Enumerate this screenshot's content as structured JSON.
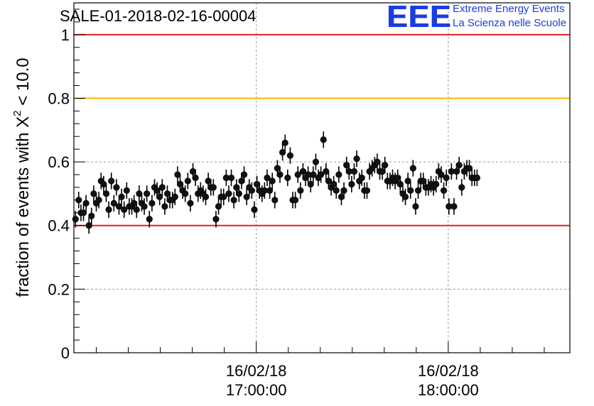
{
  "title": "SALE-01-2018-02-16-00004",
  "logo": {
    "mark": "EEE",
    "line1": "Extreme Energy Events",
    "line2": "La Scienza nelle Scuole",
    "color": "#1a3de0"
  },
  "chart_data": {
    "type": "scatter",
    "title": "SALE-01-2018-02-16-00004",
    "ylabel_prefix": "fraction of events with ",
    "ylabel_symbol": "Χ",
    "ylabel_sup": "2",
    "ylabel_suffix": " < 10.0",
    "xlabel": "",
    "ylim": [
      0,
      1.1
    ],
    "xlim_minutes": [
      -57,
      98
    ],
    "x_ticks": [
      {
        "minute": 0,
        "date": "16/02/18",
        "time": "17:00:00"
      },
      {
        "minute": 60,
        "date": "16/02/18",
        "time": "18:00:00"
      }
    ],
    "y_ticks": [
      {
        "value": 0,
        "label": "0"
      },
      {
        "value": 0.2,
        "label": "0.2"
      },
      {
        "value": 0.4,
        "label": "0.4"
      },
      {
        "value": 0.6,
        "label": "0.6"
      },
      {
        "value": 0.8,
        "label": "0.8"
      },
      {
        "value": 1,
        "label": "1"
      }
    ],
    "reference_lines": [
      {
        "value": 1.0,
        "color": "#e8201c"
      },
      {
        "value": 0.8,
        "color": "#f5b800"
      },
      {
        "value": 0.4,
        "color": "#e8201c"
      }
    ],
    "grid": true,
    "error_bar": 0.026,
    "points": [
      [
        -56.5,
        0.42
      ],
      [
        -55.5,
        0.48
      ],
      [
        -54.8,
        0.44
      ],
      [
        -54.0,
        0.44
      ],
      [
        -53.2,
        0.47
      ],
      [
        -52.3,
        0.4
      ],
      [
        -51.5,
        0.43
      ],
      [
        -50.8,
        0.5
      ],
      [
        -50.0,
        0.47
      ],
      [
        -49.2,
        0.48
      ],
      [
        -48.5,
        0.54
      ],
      [
        -47.7,
        0.53
      ],
      [
        -46.9,
        0.5
      ],
      [
        -46.1,
        0.45
      ],
      [
        -45.3,
        0.54
      ],
      [
        -44.5,
        0.47
      ],
      [
        -43.7,
        0.52
      ],
      [
        -42.9,
        0.46
      ],
      [
        -42.1,
        0.49
      ],
      [
        -41.3,
        0.45
      ],
      [
        -40.5,
        0.51
      ],
      [
        -39.7,
        0.46
      ],
      [
        -38.9,
        0.46
      ],
      [
        -38.2,
        0.47
      ],
      [
        -37.4,
        0.45
      ],
      [
        -36.6,
        0.5
      ],
      [
        -35.8,
        0.47
      ],
      [
        -35.0,
        0.46
      ],
      [
        -34.2,
        0.5
      ],
      [
        -33.4,
        0.42
      ],
      [
        -32.6,
        0.47
      ],
      [
        -31.8,
        0.52
      ],
      [
        -31.0,
        0.51
      ],
      [
        -30.2,
        0.49
      ],
      [
        -29.4,
        0.52
      ],
      [
        -28.6,
        0.46
      ],
      [
        -27.8,
        0.5
      ],
      [
        -27.0,
        0.48
      ],
      [
        -26.2,
        0.48
      ],
      [
        -25.4,
        0.49
      ],
      [
        -24.6,
        0.56
      ],
      [
        -23.8,
        0.53
      ],
      [
        -23.0,
        0.51
      ],
      [
        -22.2,
        0.5
      ],
      [
        -21.4,
        0.54
      ],
      [
        -20.6,
        0.47
      ],
      [
        -19.8,
        0.57
      ],
      [
        -19.0,
        0.55
      ],
      [
        -18.2,
        0.5
      ],
      [
        -17.4,
        0.51
      ],
      [
        -16.6,
        0.5
      ],
      [
        -15.8,
        0.49
      ],
      [
        -15.0,
        0.54
      ],
      [
        -14.2,
        0.52
      ],
      [
        -13.4,
        0.52
      ],
      [
        -12.6,
        0.42
      ],
      [
        -11.8,
        0.46
      ],
      [
        -11.0,
        0.49
      ],
      [
        -10.2,
        0.49
      ],
      [
        -9.4,
        0.55
      ],
      [
        -8.6,
        0.5
      ],
      [
        -7.8,
        0.55
      ],
      [
        -7.0,
        0.48
      ],
      [
        -6.2,
        0.52
      ],
      [
        -5.4,
        0.5
      ],
      [
        -4.6,
        0.54
      ],
      [
        -3.8,
        0.56
      ],
      [
        -3.0,
        0.49
      ],
      [
        -2.2,
        0.52
      ],
      [
        -1.4,
        0.51
      ],
      [
        -0.6,
        0.45
      ],
      [
        0.2,
        0.53
      ],
      [
        1.0,
        0.51
      ],
      [
        1.8,
        0.5
      ],
      [
        2.6,
        0.51
      ],
      [
        3.4,
        0.55
      ],
      [
        4.2,
        0.51
      ],
      [
        5.0,
        0.54
      ],
      [
        5.8,
        0.48
      ],
      [
        6.6,
        0.58
      ],
      [
        7.4,
        0.56
      ],
      [
        8.2,
        0.63
      ],
      [
        9.0,
        0.66
      ],
      [
        9.8,
        0.55
      ],
      [
        10.6,
        0.62
      ],
      [
        11.4,
        0.48
      ],
      [
        12.2,
        0.48
      ],
      [
        13.0,
        0.56
      ],
      [
        13.8,
        0.51
      ],
      [
        14.6,
        0.57
      ],
      [
        15.4,
        0.55
      ],
      [
        16.2,
        0.56
      ],
      [
        17.0,
        0.53
      ],
      [
        17.8,
        0.56
      ],
      [
        18.6,
        0.6
      ],
      [
        19.4,
        0.55
      ],
      [
        20.2,
        0.56
      ],
      [
        21.0,
        0.67
      ],
      [
        21.8,
        0.57
      ],
      [
        22.6,
        0.54
      ],
      [
        23.4,
        0.52
      ],
      [
        24.2,
        0.53
      ],
      [
        25.0,
        0.51
      ],
      [
        25.8,
        0.56
      ],
      [
        26.6,
        0.49
      ],
      [
        27.4,
        0.51
      ],
      [
        28.2,
        0.59
      ],
      [
        29.0,
        0.57
      ],
      [
        29.8,
        0.53
      ],
      [
        30.6,
        0.57
      ],
      [
        31.4,
        0.61
      ],
      [
        32.2,
        0.54
      ],
      [
        33.0,
        0.55
      ],
      [
        33.8,
        0.51
      ],
      [
        34.6,
        0.51
      ],
      [
        35.4,
        0.57
      ],
      [
        36.2,
        0.58
      ],
      [
        37.0,
        0.59
      ],
      [
        37.8,
        0.6
      ],
      [
        38.6,
        0.57
      ],
      [
        39.4,
        0.57
      ],
      [
        40.2,
        0.59
      ],
      [
        41.0,
        0.54
      ],
      [
        41.8,
        0.54
      ],
      [
        42.6,
        0.55
      ],
      [
        43.4,
        0.54
      ],
      [
        44.2,
        0.55
      ],
      [
        45.0,
        0.53
      ],
      [
        45.8,
        0.5
      ],
      [
        46.6,
        0.49
      ],
      [
        47.4,
        0.54
      ],
      [
        48.2,
        0.51
      ],
      [
        49.0,
        0.58
      ],
      [
        49.8,
        0.46
      ],
      [
        50.6,
        0.51
      ],
      [
        51.4,
        0.54
      ],
      [
        52.2,
        0.54
      ],
      [
        53.0,
        0.52
      ],
      [
        53.8,
        0.52
      ],
      [
        54.6,
        0.53
      ],
      [
        55.4,
        0.52
      ],
      [
        56.2,
        0.53
      ],
      [
        57.0,
        0.57
      ],
      [
        57.8,
        0.56
      ],
      [
        58.6,
        0.51
      ],
      [
        59.4,
        0.55
      ],
      [
        60.2,
        0.46
      ],
      [
        61.0,
        0.57
      ],
      [
        61.8,
        0.46
      ],
      [
        62.6,
        0.57
      ],
      [
        63.4,
        0.59
      ],
      [
        64.2,
        0.52
      ],
      [
        65.0,
        0.57
      ],
      [
        65.8,
        0.58
      ],
      [
        66.6,
        0.58
      ],
      [
        67.4,
        0.55
      ],
      [
        68.2,
        0.55
      ],
      [
        69.0,
        0.55
      ]
    ]
  }
}
